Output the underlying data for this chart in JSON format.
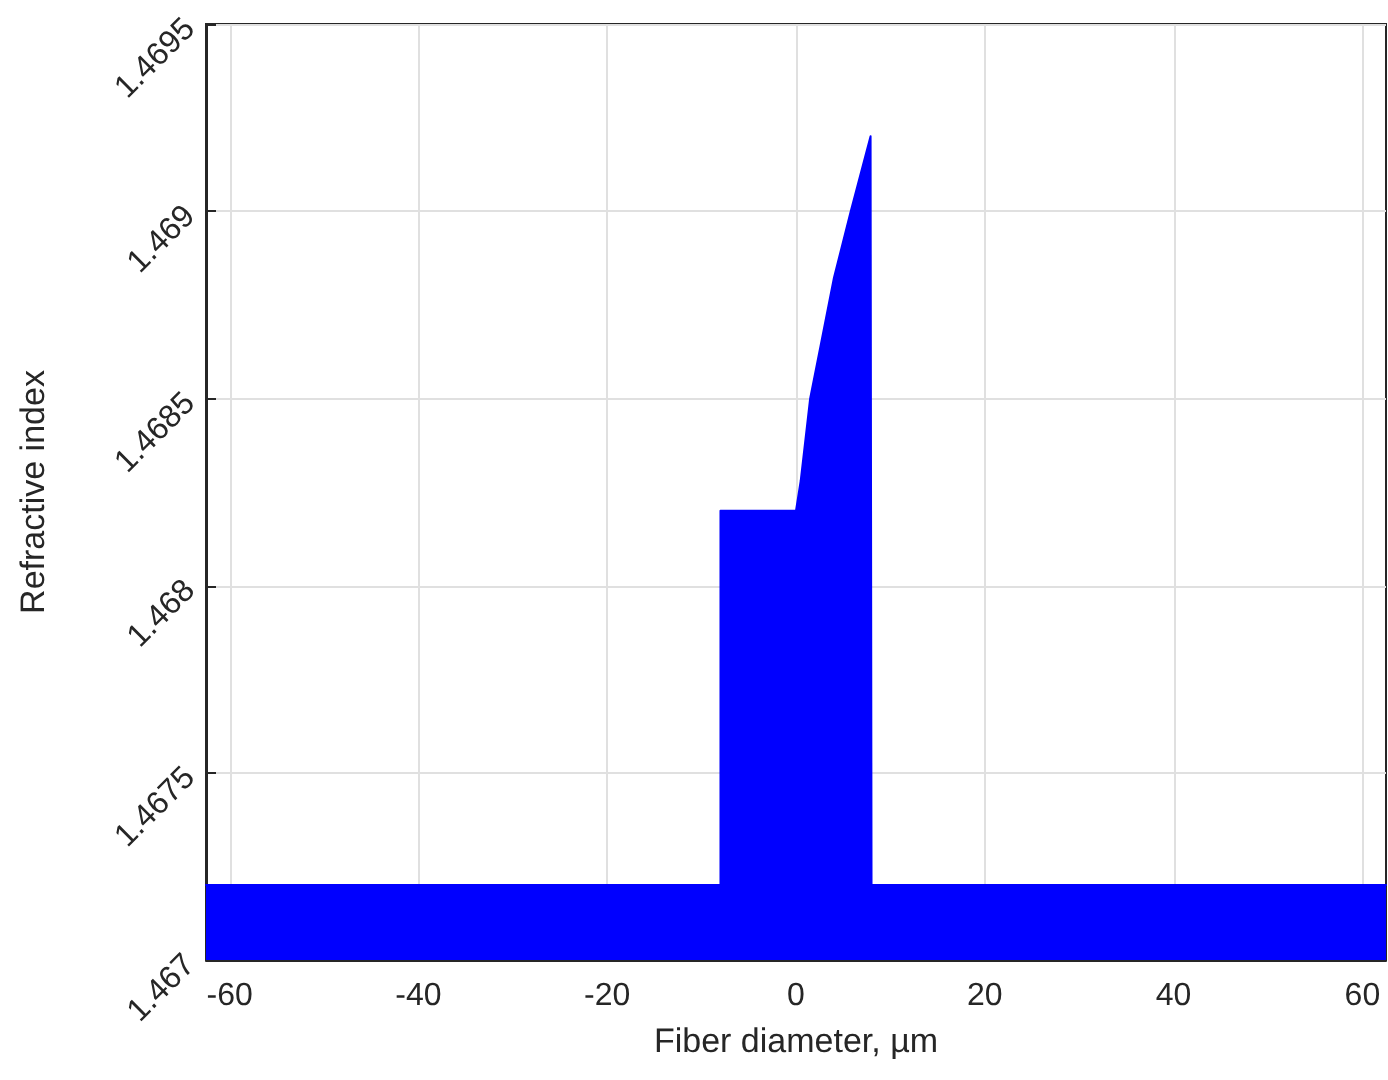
{
  "chart_data": {
    "type": "area",
    "xlabel": "Fiber diameter, µm",
    "ylabel": "Refractive index",
    "series": [
      {
        "color": "#0000ff",
        "x": [
          -62.5,
          -8,
          -8,
          0,
          0.5,
          1.5,
          2.6,
          4,
          5.8,
          7.9,
          8,
          8,
          62.5
        ],
        "values": [
          1.4672,
          1.4672,
          1.4682,
          1.4682,
          1.46828,
          1.4685,
          1.46864,
          1.46882,
          1.469,
          1.4692,
          1.4692,
          1.4672,
          1.4672
        ]
      }
    ],
    "xlim": [
      -62.5,
      62.5
    ],
    "xticks": [
      -60,
      -40,
      -20,
      0,
      20,
      40,
      60
    ],
    "ylim": [
      1.467,
      1.4695
    ],
    "yticks": [
      1.467,
      1.4675,
      1.468,
      1.4685,
      1.469,
      1.4695
    ],
    "grid": true,
    "marker": "none",
    "line_style": "solid"
  }
}
